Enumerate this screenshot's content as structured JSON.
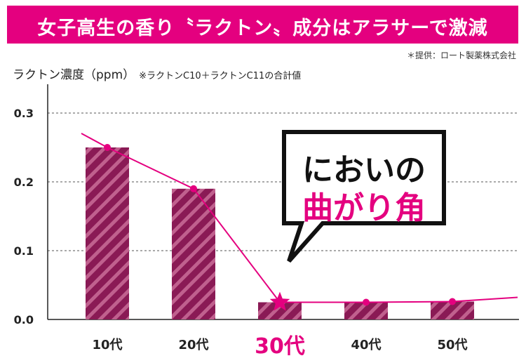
{
  "header": {
    "title": "女子高生の香り〝ラクトン〟成分はアラサーで激減"
  },
  "source_note": "＊提供：ロート製薬株式会社",
  "colors": {
    "accent": "#e4007f",
    "bar": "#8a1a55",
    "bar_stripe": "#c0608e"
  },
  "callout": {
    "line1": "においの",
    "line2": "曲がり角"
  },
  "chart_data": {
    "type": "bar",
    "ylabel": "ラクトン濃度（ppm）",
    "ylabel_note": "※ラクトンC10＋ラクトンC11の合計値",
    "categories": [
      "10代",
      "20代",
      "30代",
      "40代",
      "50代"
    ],
    "values": [
      0.25,
      0.19,
      0.025,
      0.025,
      0.026
    ],
    "trend_line_points": [
      0.25,
      0.19,
      0.025,
      0.025,
      0.026
    ],
    "highlight_category": "30代",
    "ylim": [
      0,
      0.3
    ],
    "yticks": [
      "0.0",
      "0.1",
      "0.2",
      "0.3"
    ],
    "grid": true,
    "legend": "none"
  }
}
